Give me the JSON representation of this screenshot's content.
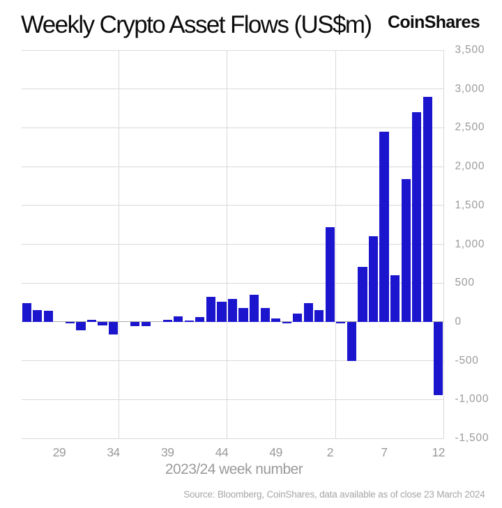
{
  "header": {
    "title": "Weekly Crypto Asset Flows (US$m)",
    "logo": "CoinShares"
  },
  "chart_data": {
    "type": "bar",
    "title": "Weekly Crypto Asset Flows (US$m)",
    "xlabel": "2023/24 week number",
    "ylabel": "",
    "x_categories": [
      "26",
      "27",
      "28",
      "29",
      "30",
      "31",
      "32",
      "33",
      "34",
      "35",
      "36",
      "37",
      "38",
      "39",
      "40",
      "41",
      "42",
      "43",
      "44",
      "45",
      "46",
      "47",
      "48",
      "49",
      "50",
      "51",
      "52",
      "1",
      "2",
      "3",
      "4",
      "5",
      "6",
      "7",
      "8",
      "9",
      "10",
      "11",
      "12"
    ],
    "values": [
      240,
      150,
      141,
      0,
      -21,
      -107,
      25,
      -45,
      -165,
      0,
      -51,
      -54,
      0,
      26,
      72,
      15,
      64,
      326,
      261,
      293,
      176,
      346,
      176,
      43,
      -16,
      103,
      243,
      151,
      1220,
      -21,
      -500,
      708,
      1100,
      2450,
      598,
      1840,
      2700,
      2900,
      -942
    ],
    "ylim": [
      -1500,
      3500
    ],
    "ytick_step": 500,
    "ytick_labels": [
      "3,500",
      "3,000",
      "2,500",
      "2,000",
      "1,500",
      "1,000",
      "500",
      "0",
      "-500",
      "-1,000",
      "-1,500"
    ],
    "ytick_values": [
      3500,
      3000,
      2500,
      2000,
      1500,
      1000,
      500,
      0,
      -500,
      -1000,
      -1500
    ],
    "xtick_labels": [
      "29",
      "34",
      "39",
      "44",
      "49",
      "2",
      "7",
      "12"
    ],
    "xtick_indices": [
      3,
      8,
      13,
      18,
      23,
      28,
      33,
      38
    ],
    "vgrid_boundary_indices": [
      9,
      19,
      29,
      39
    ],
    "grid": true,
    "legend_position": "none",
    "bar_color": "#1b15cd",
    "grid_color": "#d9d9d9",
    "zero_line_color": "#ababab",
    "source": "Source: Bloomberg, CoinShares, data available as of close 23 March 2024"
  }
}
